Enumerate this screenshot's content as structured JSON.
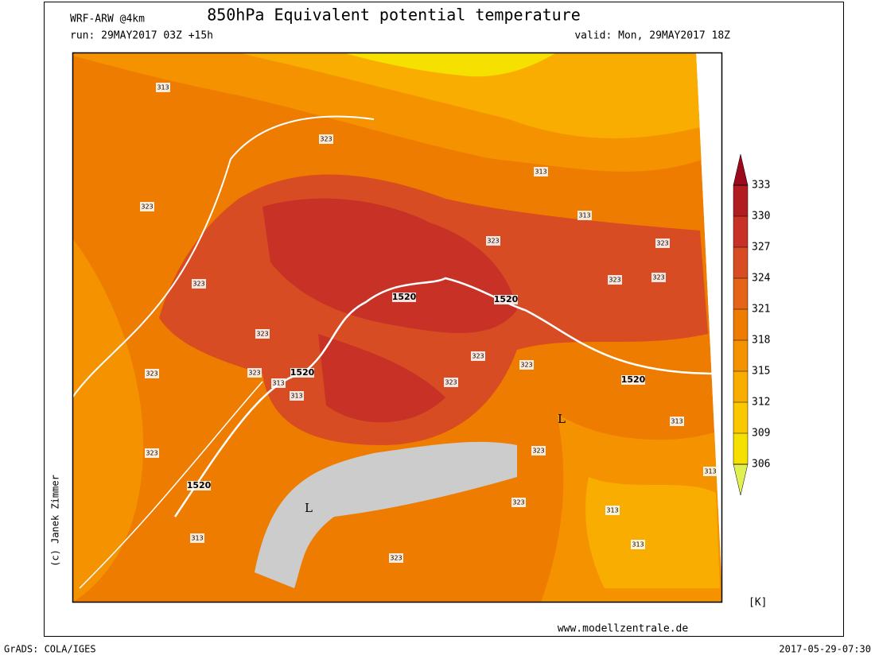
{
  "header": {
    "model": "WRF-ARW @4km",
    "title": "850hPa Equivalent potential temperature",
    "run": "run: 29MAY2017 03Z +15h",
    "valid": "valid: Mon, 29MAY2017 18Z"
  },
  "credit": "(c) Janek Zimmer",
  "website": "www.modellzentrale.de",
  "footer": {
    "software": "GrADS: COLA/IGES",
    "timestamp": "2017-05-29-07:30"
  },
  "colorbar": {
    "unit": "[K]",
    "ticks": [
      306,
      309,
      312,
      315,
      318,
      321,
      324,
      327,
      330,
      333
    ],
    "colors": [
      "#e0f050",
      "#f5e000",
      "#fbc800",
      "#f9ad00",
      "#f59200",
      "#ee7c00",
      "#e46418",
      "#d84c24",
      "#c83226",
      "#b01c20",
      "#9a0a1c"
    ]
  },
  "map": {
    "contour_labels": [
      "313",
      "323",
      "323",
      "313",
      "313",
      "323",
      "323",
      "323",
      "323",
      "1520",
      "1520",
      "323",
      "323",
      "323",
      "323",
      "1520",
      "323",
      "323",
      "313",
      "313",
      "323",
      "1520",
      "313",
      "L",
      "323",
      "323",
      "1520",
      "313",
      "323",
      "313",
      "L",
      "313",
      "313",
      "323"
    ]
  }
}
